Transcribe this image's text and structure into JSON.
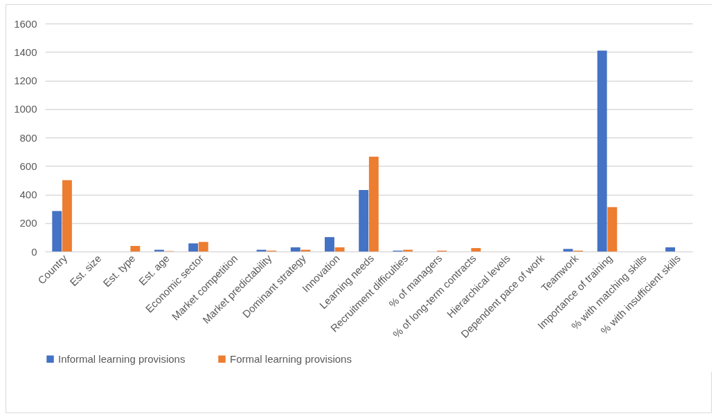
{
  "chart_data": {
    "type": "bar",
    "categories": [
      "Country",
      "Est. size",
      "Est. type",
      "Est. age",
      "Economic sector",
      "Market competition",
      "Market predictability",
      "Dominant strategy",
      "Innovation",
      "Learning needs",
      "Recruitment difficulties",
      "% of managers",
      "% of long-term contracts",
      "Hierarchical levels",
      "Dependent pace of work",
      "Teamwork",
      "Importance of training",
      "% with matching skills",
      "% with insufficient skills"
    ],
    "series": [
      {
        "name": "Informal learning provisions",
        "color": "#4472c4",
        "values": [
          284,
          0,
          0,
          12,
          57,
          0,
          12,
          29,
          101,
          431,
          6,
          0,
          0,
          0,
          0,
          18,
          1410,
          0,
          29
        ]
      },
      {
        "name": "Formal learning provisions",
        "color": "#ed7d31",
        "values": [
          501,
          0,
          39,
          3,
          67,
          0,
          6,
          12,
          29,
          665,
          12,
          6,
          24,
          0,
          0,
          6,
          312,
          0,
          0
        ]
      }
    ],
    "ylim": [
      0,
      1600
    ],
    "yticks": [
      0,
      200,
      400,
      600,
      800,
      1000,
      1200,
      1400,
      1600
    ],
    "grid": "y",
    "legend": "bottom"
  }
}
